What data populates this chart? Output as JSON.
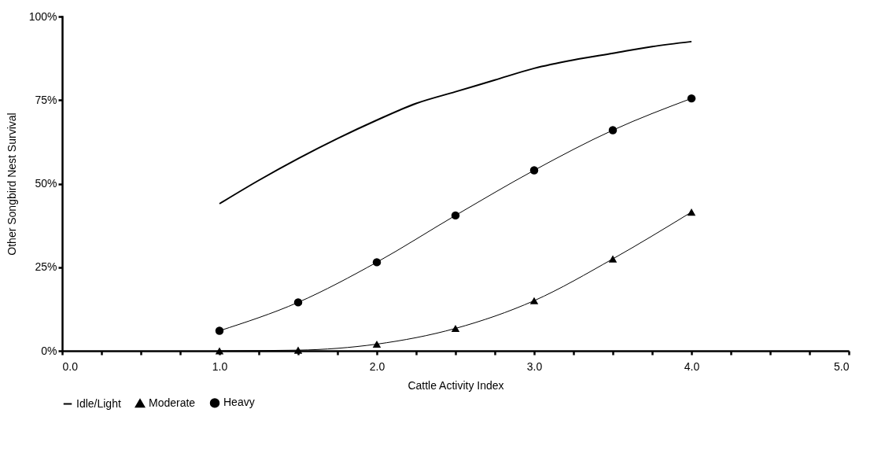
{
  "chart_data": {
    "type": "line",
    "xlabel": "Cattle Activity Index",
    "ylabel": "Other Songbird Nest Survival",
    "xlim": [
      0,
      5
    ],
    "ylim": [
      0,
      100
    ],
    "xticks": [
      {
        "value": 0,
        "label": "0.0"
      },
      {
        "value": 0.25,
        "label": null
      },
      {
        "value": 0.5,
        "label": null
      },
      {
        "value": 0.75,
        "label": null
      },
      {
        "value": 1,
        "label": "1.0"
      },
      {
        "value": 1.25,
        "label": null
      },
      {
        "value": 1.5,
        "label": null
      },
      {
        "value": 1.75,
        "label": null
      },
      {
        "value": 2,
        "label": "2.0"
      },
      {
        "value": 2.25,
        "label": null
      },
      {
        "value": 2.5,
        "label": null
      },
      {
        "value": 2.75,
        "label": null
      },
      {
        "value": 3,
        "label": "3.0"
      },
      {
        "value": 3.25,
        "label": null
      },
      {
        "value": 3.5,
        "label": null
      },
      {
        "value": 3.75,
        "label": null
      },
      {
        "value": 4,
        "label": "4.0"
      },
      {
        "value": 4.25,
        "label": null
      },
      {
        "value": 4.5,
        "label": null
      },
      {
        "value": 4.75,
        "label": null
      },
      {
        "value": 5,
        "label": "5.0"
      }
    ],
    "yticks": [
      {
        "value": 0,
        "label": "0%"
      },
      {
        "value": 25,
        "label": "25%"
      },
      {
        "value": 50,
        "label": "50%"
      },
      {
        "value": 75,
        "label": "75%"
      },
      {
        "value": 100,
        "label": "100%"
      }
    ],
    "grid": false,
    "legend": "bottom",
    "series": [
      {
        "name": "Idle/Light",
        "color": "#000000",
        "marker": "none",
        "x": [
          1,
          1.25,
          1.5,
          1.75,
          2,
          2.25,
          2.5,
          2.75,
          3,
          3.25,
          3.5,
          3.75,
          4
        ],
        "values": [
          44,
          51,
          57.5,
          63.5,
          69,
          74,
          77.5,
          81,
          84.5,
          87,
          89,
          91,
          92.5
        ]
      },
      {
        "name": "Moderate",
        "color": "#000000",
        "marker": "triangle",
        "x": [
          1,
          1.5,
          2,
          2.5,
          3,
          3.5,
          4
        ],
        "values": [
          0,
          0.2,
          2,
          6.7,
          15,
          27.5,
          41.5
        ]
      },
      {
        "name": "Heavy",
        "color": "#000000",
        "marker": "circle",
        "x": [
          1,
          1.5,
          2,
          2.5,
          3,
          3.5,
          4
        ],
        "values": [
          6,
          14.5,
          26.5,
          40.5,
          54,
          66,
          75.5
        ]
      }
    ]
  }
}
